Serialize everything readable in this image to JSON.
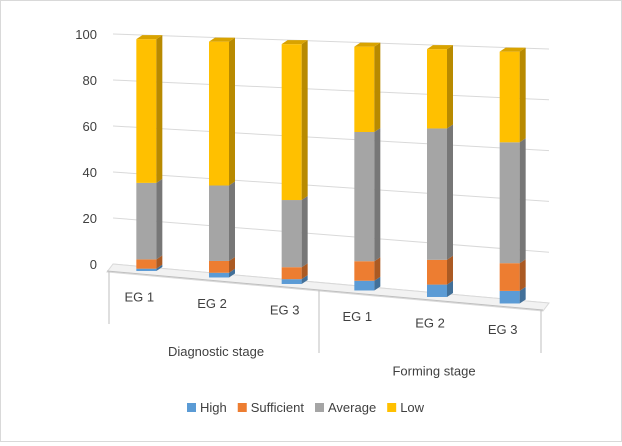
{
  "chart_data": {
    "type": "bar",
    "stacked": true,
    "style": "3d",
    "groups": [
      {
        "label": "Diagnostic stage",
        "categories": [
          "EG 1",
          "EG 2",
          "EG 3"
        ]
      },
      {
        "label": "Forming stage",
        "categories": [
          "EG 1",
          "EG 2",
          "EG 3"
        ]
      }
    ],
    "categories": [
      "EG 1",
      "EG 2",
      "EG 3",
      "EG 1",
      "EG 2",
      "EG 3"
    ],
    "series": [
      {
        "name": "High",
        "color": "#5b9bd5",
        "values": [
          1,
          2,
          2,
          4,
          5,
          5
        ]
      },
      {
        "name": "Sufficient",
        "color": "#ed7d31",
        "values": [
          4,
          5,
          5,
          8,
          10,
          11
        ]
      },
      {
        "name": "Average",
        "color": "#a5a5a5",
        "values": [
          33,
          32,
          28,
          53,
          53,
          48
        ]
      },
      {
        "name": "Low",
        "color": "#ffc000",
        "values": [
          62,
          61,
          65,
          35,
          32,
          36
        ]
      }
    ],
    "yticks": [
      "100",
      "80",
      "60",
      "40",
      "20",
      "0"
    ],
    "ylim": [
      0,
      100
    ],
    "title": "",
    "xlabel": "",
    "ylabel": "",
    "grid": true,
    "legend_position": "bottom"
  }
}
